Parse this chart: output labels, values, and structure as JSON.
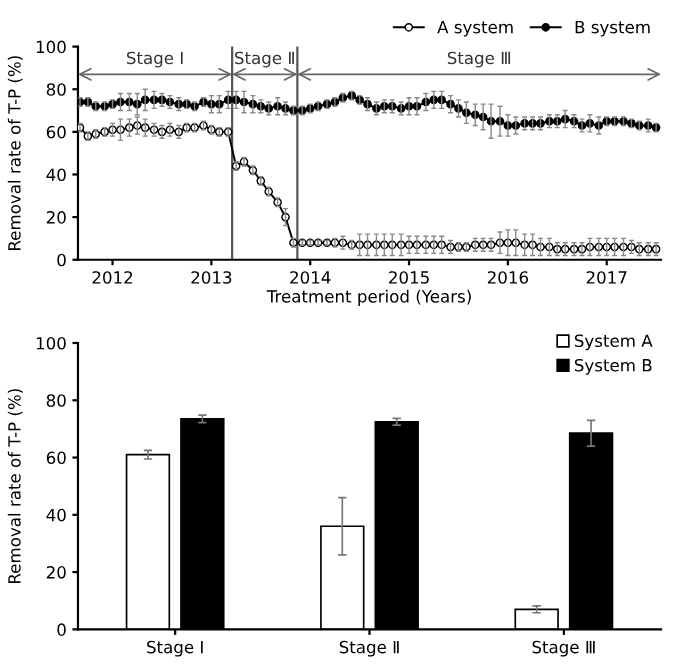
{
  "chart_data": [
    {
      "type": "line",
      "xlabel": "Treatment period (Years)",
      "ylabel": "Removal rate of T-P (%)",
      "xlim": [
        2011.65,
        2017.55
      ],
      "xticks": [
        2012,
        2013,
        2014,
        2015,
        2016,
        2017
      ],
      "ylim": [
        0,
        100
      ],
      "yticks": [
        0,
        20,
        40,
        60,
        80,
        100
      ],
      "grid": false,
      "legend": "top right",
      "line_style": "solid",
      "x": [
        2011.67,
        2011.75,
        2011.83,
        2011.92,
        2012.0,
        2012.08,
        2012.17,
        2012.25,
        2012.33,
        2012.42,
        2012.5,
        2012.58,
        2012.67,
        2012.75,
        2012.83,
        2012.92,
        2013.0,
        2013.08,
        2013.17,
        2013.25,
        2013.33,
        2013.42,
        2013.5,
        2013.58,
        2013.67,
        2013.75,
        2013.83,
        2013.92,
        2014.0,
        2014.08,
        2014.17,
        2014.25,
        2014.33,
        2014.42,
        2014.5,
        2014.58,
        2014.67,
        2014.75,
        2014.83,
        2014.92,
        2015.0,
        2015.08,
        2015.17,
        2015.25,
        2015.33,
        2015.42,
        2015.5,
        2015.58,
        2015.67,
        2015.75,
        2015.83,
        2015.92,
        2016.0,
        2016.08,
        2016.17,
        2016.25,
        2016.33,
        2016.42,
        2016.5,
        2016.58,
        2016.67,
        2016.75,
        2016.83,
        2016.92,
        2017.0,
        2017.08,
        2017.17,
        2017.25,
        2017.33,
        2017.42,
        2017.5
      ],
      "series": [
        {
          "name": "A system",
          "color": "#000000",
          "marker": "circle",
          "values": [
            62,
            58,
            59,
            60,
            61,
            61,
            62,
            63,
            62,
            61,
            60,
            61,
            60,
            62,
            62,
            63,
            61,
            60,
            60,
            44,
            46,
            42,
            37,
            32,
            27,
            20,
            8,
            8,
            8,
            8,
            8,
            8,
            8,
            7,
            7,
            7,
            7,
            7,
            7,
            7,
            7,
            7,
            7,
            7,
            7,
            6,
            6,
            6,
            7,
            7,
            7,
            8,
            8,
            8,
            7,
            7,
            6,
            6,
            5,
            5,
            5,
            5,
            6,
            6,
            6,
            6,
            6,
            6,
            5,
            5,
            5
          ],
          "errors": [
            2,
            2,
            2,
            2,
            3,
            5,
            4,
            4,
            4,
            3,
            3,
            3,
            3,
            2,
            2,
            2,
            2,
            2,
            2,
            2,
            2,
            2,
            2,
            2,
            2,
            4,
            2,
            1,
            1,
            1,
            1,
            2,
            3,
            2,
            5,
            5,
            5,
            5,
            5,
            5,
            4,
            4,
            4,
            4,
            4,
            3,
            2,
            2,
            3,
            3,
            3,
            5,
            6,
            6,
            5,
            5,
            4,
            4,
            3,
            3,
            3,
            3,
            4,
            4,
            4,
            4,
            4,
            3,
            3,
            3,
            3
          ]
        },
        {
          "name": "B system",
          "color": "#000000",
          "marker": "circle",
          "values": [
            74,
            74,
            72,
            72,
            73,
            74,
            74,
            73,
            75,
            75,
            75,
            74,
            73,
            73,
            72,
            74,
            73,
            73,
            75,
            75,
            74,
            73,
            72,
            71,
            72,
            71,
            70,
            70,
            71,
            72,
            73,
            74,
            76,
            77,
            75,
            73,
            71,
            72,
            72,
            71,
            72,
            72,
            74,
            75,
            75,
            73,
            71,
            69,
            68,
            67,
            65,
            65,
            63,
            63,
            64,
            64,
            64,
            65,
            65,
            66,
            65,
            63,
            64,
            63,
            65,
            65,
            65,
            64,
            63,
            63,
            62
          ],
          "errors": [
            2,
            2,
            2,
            2,
            2,
            4,
            4,
            5,
            5,
            4,
            3,
            3,
            3,
            2,
            2,
            2,
            4,
            4,
            4,
            4,
            5,
            4,
            3,
            3,
            4,
            3,
            2,
            2,
            2,
            2,
            2,
            2,
            2,
            2,
            2,
            3,
            3,
            3,
            3,
            3,
            4,
            4,
            4,
            4,
            4,
            4,
            4,
            5,
            5,
            6,
            8,
            7,
            5,
            4,
            3,
            3,
            3,
            3,
            3,
            4,
            3,
            3,
            4,
            4,
            2,
            2,
            2,
            2,
            2,
            3,
            2
          ]
        }
      ],
      "ref_lines": [
        {
          "axis": "x",
          "value": 2013.21,
          "color": "#555555"
        },
        {
          "axis": "x",
          "value": 2013.87,
          "color": "#555555"
        }
      ],
      "annotations": [
        "Stage Ⅰ",
        "Stage Ⅱ",
        "Stage Ⅲ"
      ]
    },
    {
      "type": "bar",
      "ylabel": "Removal rate of T-P (%)",
      "categories": [
        "Stage Ⅰ",
        "Stage Ⅱ",
        "Stage Ⅲ"
      ],
      "ylim": [
        0,
        100
      ],
      "yticks": [
        0,
        20,
        40,
        60,
        80,
        100
      ],
      "grid": false,
      "legend": "top right",
      "series": [
        {
          "name": "System A",
          "color": "#ffffff",
          "values": [
            61,
            36,
            7
          ],
          "errors": [
            1.5,
            10,
            1.2
          ]
        },
        {
          "name": "System B",
          "color": "#000000",
          "values": [
            73.5,
            72.5,
            68.5
          ],
          "errors": [
            1.3,
            1.2,
            4.5
          ]
        }
      ]
    }
  ]
}
